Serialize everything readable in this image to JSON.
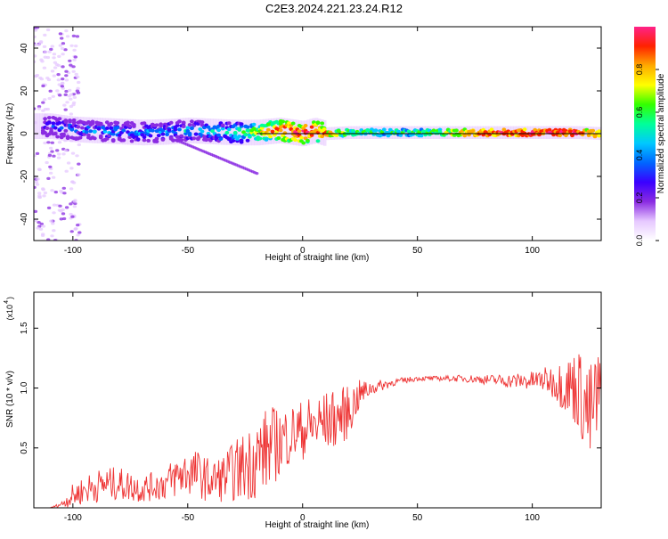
{
  "title": "C2E3.2024.221.23.24.R12",
  "chart_data": [
    {
      "type": "heatmap",
      "title": "C2E3.2024.221.23.24.R12",
      "xlabel": "Height of straight line (km)",
      "ylabel": "Frequency (Hz)",
      "xlim": [
        -117,
        130
      ],
      "ylim": [
        -50,
        50
      ],
      "x_ticks": [
        -100,
        -50,
        0,
        50,
        100
      ],
      "y_ticks": [
        -40,
        -20,
        0,
        20,
        40
      ],
      "colorbar": {
        "label": "Normalized spectral amplitude",
        "range": [
          0,
          1
        ],
        "ticks": [
          "0.0",
          "0.2",
          "0.4",
          "0.6",
          "0.8"
        ],
        "colors": [
          "#ffffff",
          "#e6c8ff",
          "#8a2be2",
          "#3a00ff",
          "#0066ff",
          "#00c8ff",
          "#00ff99",
          "#33ff00",
          "#ffff00",
          "#ffaa00",
          "#ff2200",
          "#ff2288"
        ]
      },
      "ridge": [
        {
          "x": -110,
          "freq": 3.5,
          "amp": 0.35
        },
        {
          "x": -100,
          "freq": 2.0,
          "amp": 0.4
        },
        {
          "x": -90,
          "freq": 1.5,
          "amp": 0.38
        },
        {
          "x": -80,
          "freq": 1.0,
          "amp": 0.42
        },
        {
          "x": -70,
          "freq": 0.5,
          "amp": 0.4
        },
        {
          "x": -60,
          "freq": 0.8,
          "amp": 0.42
        },
        {
          "x": -50,
          "freq": 1.5,
          "amp": 0.45
        },
        {
          "x": -40,
          "freq": 1.0,
          "amp": 0.48
        },
        {
          "x": -30,
          "freq": 0.5,
          "amp": 0.55
        },
        {
          "x": -20,
          "freq": 0.5,
          "amp": 0.7
        },
        {
          "x": -10,
          "freq": 1.5,
          "amp": 0.92
        },
        {
          "x": 0,
          "freq": 0.0,
          "amp": 0.98
        },
        {
          "x": 5,
          "freq": 1.5,
          "amp": 0.95
        },
        {
          "x": 10,
          "freq": 0.0,
          "amp": 0.85
        },
        {
          "x": 20,
          "freq": 0.5,
          "amp": 0.6
        },
        {
          "x": 40,
          "freq": 0.5,
          "amp": 0.55
        },
        {
          "x": 60,
          "freq": 0.5,
          "amp": 0.6
        },
        {
          "x": 70,
          "freq": 0.5,
          "amp": 0.85
        },
        {
          "x": 80,
          "freq": 0.5,
          "amp": 0.9
        },
        {
          "x": 90,
          "freq": 0.5,
          "amp": 0.92
        },
        {
          "x": 100,
          "freq": 0.5,
          "amp": 0.95
        },
        {
          "x": 110,
          "freq": 0.5,
          "amp": 0.95
        },
        {
          "x": 120,
          "freq": 0.5,
          "amp": 0.92
        },
        {
          "x": 130,
          "freq": 0.0,
          "amp": 0.8
        }
      ]
    },
    {
      "type": "line",
      "xlabel": "Height of straight line (km)",
      "ylabel": "SNR (10 * v/v)",
      "y_multiplier_label": "(x10",
      "y_multiplier_exp": "4",
      "xlim": [
        -117,
        130
      ],
      "ylim": [
        0,
        1.8
      ],
      "x_ticks": [
        -100,
        -50,
        0,
        50,
        100
      ],
      "y_ticks": [
        "0.5",
        "1.0",
        "1.5"
      ],
      "series": [
        {
          "color": "#ee3333",
          "x": [
            -117,
            -110,
            -105,
            -100,
            -95,
            -90,
            -85,
            -80,
            -75,
            -70,
            -65,
            -60,
            -55,
            -50,
            -45,
            -40,
            -35,
            -30,
            -25,
            -20,
            -15,
            -10,
            -5,
            0,
            5,
            10,
            15,
            20,
            25,
            30,
            40,
            50,
            60,
            70,
            80,
            90,
            100,
            105,
            110,
            115,
            120,
            125,
            130
          ],
          "y": [
            0.0,
            0.0,
            0.03,
            0.1,
            0.15,
            0.18,
            0.2,
            0.2,
            0.18,
            0.16,
            0.18,
            0.2,
            0.26,
            0.3,
            0.28,
            0.22,
            0.25,
            0.3,
            0.35,
            0.42,
            0.5,
            0.55,
            0.62,
            0.65,
            0.68,
            0.72,
            0.75,
            0.8,
            0.95,
            1.0,
            1.05,
            1.08,
            1.08,
            1.08,
            1.07,
            1.06,
            1.06,
            1.07,
            1.05,
            1.02,
            1.0,
            0.75,
            1.0
          ],
          "noise": [
            0.0,
            0.0,
            0.02,
            0.1,
            0.12,
            0.14,
            0.14,
            0.14,
            0.13,
            0.12,
            0.12,
            0.14,
            0.18,
            0.2,
            0.2,
            0.18,
            0.2,
            0.25,
            0.3,
            0.35,
            0.35,
            0.3,
            0.25,
            0.25,
            0.28,
            0.25,
            0.25,
            0.22,
            0.12,
            0.06,
            0.03,
            0.02,
            0.02,
            0.03,
            0.04,
            0.06,
            0.08,
            0.1,
            0.15,
            0.25,
            0.35,
            0.45,
            0.4
          ]
        }
      ]
    }
  ]
}
